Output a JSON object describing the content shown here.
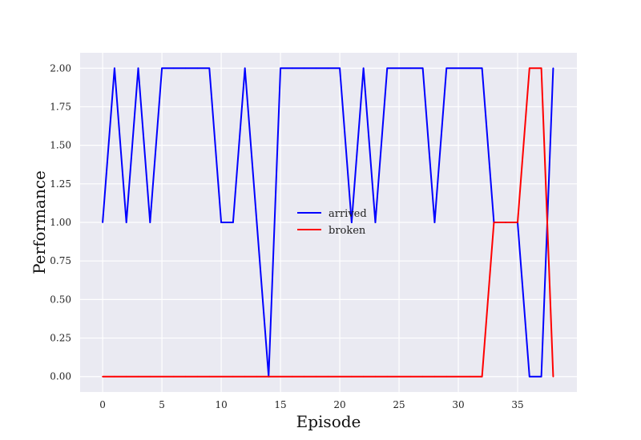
{
  "chart_data": {
    "type": "line",
    "title": "",
    "xlabel": "Episode",
    "ylabel": "Performance",
    "xlim": [
      -1.9,
      40
    ],
    "ylim": [
      -0.1,
      2.1
    ],
    "xticks": [
      "0",
      "5",
      "10",
      "15",
      "20",
      "25",
      "30",
      "35"
    ],
    "yticks": [
      "0.00",
      "0.25",
      "0.50",
      "0.75",
      "1.00",
      "1.25",
      "1.50",
      "1.75",
      "2.00"
    ],
    "grid": true,
    "legend_position": "center",
    "background": "#eaeaf2",
    "x": [
      0,
      1,
      2,
      3,
      4,
      5,
      6,
      7,
      8,
      9,
      10,
      11,
      12,
      13,
      14,
      15,
      16,
      17,
      18,
      19,
      20,
      21,
      22,
      23,
      24,
      25,
      26,
      27,
      28,
      29,
      30,
      31,
      32,
      33,
      34,
      35,
      36,
      37,
      38
    ],
    "series": [
      {
        "name": "arrived",
        "color": "#0000ff",
        "values": [
          1,
          2,
          1,
          2,
          1,
          2,
          2,
          2,
          2,
          2,
          1,
          1,
          2,
          1,
          0,
          2,
          2,
          2,
          2,
          2,
          2,
          1,
          2,
          1,
          2,
          2,
          2,
          2,
          1,
          2,
          2,
          2,
          2,
          1,
          1,
          1,
          0,
          0,
          2
        ]
      },
      {
        "name": "broken",
        "color": "#ff0000",
        "values": [
          0,
          0,
          0,
          0,
          0,
          0,
          0,
          0,
          0,
          0,
          0,
          0,
          0,
          0,
          0,
          0,
          0,
          0,
          0,
          0,
          0,
          0,
          0,
          0,
          0,
          0,
          0,
          0,
          0,
          0,
          0,
          0,
          0,
          1,
          1,
          1,
          2,
          2,
          0
        ]
      }
    ]
  }
}
